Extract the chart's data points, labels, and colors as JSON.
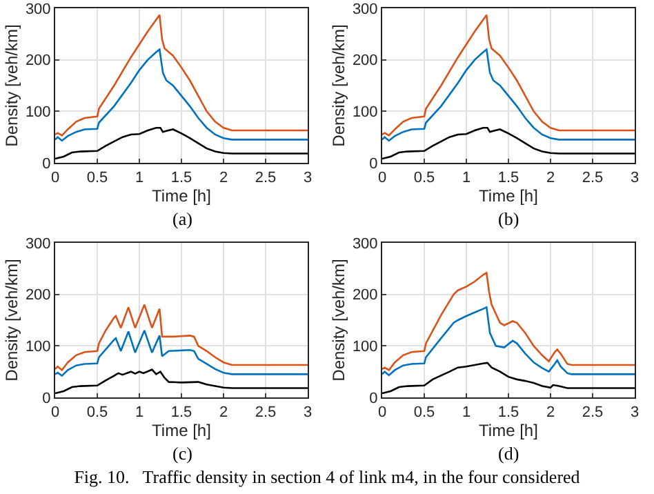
{
  "chart_data": [
    {
      "type": "line",
      "xlabel": "Time [h]",
      "ylabel": "Density [veh/km]",
      "xlim": [
        0,
        3
      ],
      "ylim": [
        0,
        300
      ],
      "xticks": [
        0,
        0.5,
        1,
        1.5,
        2,
        2.5,
        3
      ],
      "yticks": [
        0,
        100,
        200,
        300
      ],
      "grid": true,
      "annotations": [
        "(a)"
      ],
      "series": [
        {
          "color": "#d95319",
          "x": [
            0,
            0.03,
            0.08,
            0.15,
            0.25,
            0.35,
            0.5,
            0.52,
            0.7,
            0.9,
            1.0,
            1.1,
            1.2,
            1.24,
            1.27,
            1.3,
            1.4,
            1.5,
            1.6,
            1.7,
            1.8,
            1.9,
            2.0,
            2.1,
            3
          ],
          "values": [
            55,
            58,
            53,
            65,
            80,
            87,
            90,
            105,
            150,
            205,
            230,
            255,
            278,
            287,
            240,
            222,
            208,
            185,
            160,
            130,
            100,
            80,
            68,
            63,
            63
          ]
        },
        {
          "color": "#0072bd",
          "x": [
            0,
            0.03,
            0.08,
            0.15,
            0.25,
            0.35,
            0.5,
            0.52,
            0.7,
            0.9,
            1.0,
            1.1,
            1.2,
            1.24,
            1.28,
            1.32,
            1.4,
            1.5,
            1.6,
            1.7,
            1.8,
            1.9,
            2.0,
            2.1,
            3
          ],
          "values": [
            45,
            50,
            43,
            52,
            60,
            65,
            66,
            78,
            110,
            155,
            180,
            200,
            215,
            220,
            175,
            160,
            150,
            130,
            110,
            87,
            68,
            55,
            48,
            45,
            45
          ]
        },
        {
          "color": "#000000",
          "x": [
            0,
            0.1,
            0.2,
            0.3,
            0.5,
            0.6,
            0.8,
            0.9,
            1.0,
            1.1,
            1.2,
            1.25,
            1.28,
            1.32,
            1.4,
            1.5,
            1.6,
            1.7,
            1.8,
            1.9,
            2.0,
            2.1,
            3
          ],
          "values": [
            8,
            12,
            20,
            22,
            23,
            33,
            50,
            55,
            56,
            63,
            68,
            68,
            60,
            62,
            65,
            57,
            48,
            38,
            28,
            22,
            19,
            18,
            18
          ]
        }
      ]
    },
    {
      "type": "line",
      "xlabel": "Time [h]",
      "ylabel": "Density [veh/km]",
      "xlim": [
        0,
        3
      ],
      "ylim": [
        0,
        300
      ],
      "xticks": [
        0,
        0.5,
        1,
        1.5,
        2,
        2.5,
        3
      ],
      "yticks": [
        0,
        100,
        200,
        300
      ],
      "grid": true,
      "annotations": [
        "(b)"
      ],
      "series": [
        {
          "color": "#d95319",
          "x": [
            0,
            0.03,
            0.08,
            0.15,
            0.25,
            0.35,
            0.5,
            0.52,
            0.7,
            0.9,
            1.0,
            1.1,
            1.2,
            1.24,
            1.27,
            1.3,
            1.4,
            1.5,
            1.6,
            1.7,
            1.8,
            1.9,
            2.0,
            2.1,
            3
          ],
          "values": [
            55,
            58,
            53,
            65,
            80,
            87,
            90,
            105,
            150,
            205,
            230,
            255,
            278,
            287,
            240,
            222,
            208,
            185,
            160,
            130,
            100,
            80,
            68,
            63,
            63
          ]
        },
        {
          "color": "#0072bd",
          "x": [
            0,
            0.03,
            0.08,
            0.15,
            0.25,
            0.35,
            0.5,
            0.52,
            0.7,
            0.9,
            1.0,
            1.1,
            1.2,
            1.24,
            1.28,
            1.32,
            1.4,
            1.5,
            1.6,
            1.7,
            1.8,
            1.9,
            2.0,
            2.1,
            3
          ],
          "values": [
            45,
            50,
            43,
            52,
            60,
            65,
            66,
            78,
            110,
            155,
            180,
            200,
            215,
            220,
            175,
            160,
            150,
            130,
            110,
            87,
            68,
            55,
            48,
            45,
            45
          ]
        },
        {
          "color": "#000000",
          "x": [
            0,
            0.1,
            0.2,
            0.3,
            0.5,
            0.6,
            0.8,
            0.9,
            1.0,
            1.1,
            1.2,
            1.25,
            1.28,
            1.32,
            1.4,
            1.5,
            1.6,
            1.7,
            1.8,
            1.9,
            2.0,
            2.1,
            3
          ],
          "values": [
            8,
            12,
            20,
            22,
            23,
            33,
            50,
            55,
            56,
            63,
            68,
            68,
            60,
            62,
            65,
            57,
            48,
            38,
            28,
            22,
            19,
            18,
            18
          ]
        }
      ]
    },
    {
      "type": "line",
      "xlabel": "Time [h]",
      "ylabel": "Density [veh/km]",
      "xlim": [
        0,
        3
      ],
      "ylim": [
        0,
        300
      ],
      "xticks": [
        0,
        0.5,
        1,
        1.5,
        2,
        2.5,
        3
      ],
      "yticks": [
        0,
        100,
        200,
        300
      ],
      "grid": true,
      "annotations": [
        "(c)"
      ],
      "series": [
        {
          "color": "#d95319",
          "x": [
            0,
            0.03,
            0.08,
            0.15,
            0.25,
            0.35,
            0.5,
            0.52,
            0.6,
            0.7,
            0.72,
            0.78,
            0.87,
            0.95,
            1.06,
            1.15,
            1.24,
            1.27,
            1.4,
            1.6,
            1.65,
            1.7,
            1.8,
            1.9,
            2.0,
            2.1,
            3
          ],
          "values": [
            55,
            60,
            53,
            68,
            82,
            88,
            90,
            105,
            130,
            155,
            158,
            135,
            175,
            135,
            180,
            135,
            172,
            118,
            118,
            120,
            118,
            100,
            90,
            78,
            68,
            63,
            63
          ]
        },
        {
          "color": "#0072bd",
          "x": [
            0,
            0.03,
            0.08,
            0.15,
            0.25,
            0.35,
            0.5,
            0.52,
            0.7,
            0.72,
            0.78,
            0.87,
            0.95,
            1.06,
            1.15,
            1.24,
            1.27,
            1.35,
            1.6,
            1.65,
            1.7,
            1.8,
            1.9,
            2.0,
            2.1,
            3
          ],
          "values": [
            45,
            48,
            42,
            53,
            62,
            65,
            66,
            78,
            112,
            115,
            90,
            128,
            87,
            130,
            87,
            120,
            80,
            90,
            92,
            90,
            75,
            65,
            55,
            48,
            45,
            45
          ]
        },
        {
          "color": "#000000",
          "x": [
            0,
            0.1,
            0.2,
            0.3,
            0.5,
            0.6,
            0.7,
            0.75,
            0.8,
            0.9,
            0.95,
            1.0,
            1.05,
            1.15,
            1.2,
            1.25,
            1.3,
            1.35,
            1.5,
            1.7,
            1.8,
            1.9,
            2.0,
            2.1,
            3
          ],
          "values": [
            8,
            12,
            20,
            22,
            23,
            33,
            42,
            47,
            44,
            50,
            46,
            50,
            47,
            54,
            45,
            50,
            38,
            30,
            29,
            30,
            25,
            22,
            19,
            18,
            18
          ]
        }
      ]
    },
    {
      "type": "line",
      "xlabel": "Time [h]",
      "ylabel": "Density [veh/km]",
      "xlim": [
        0,
        3
      ],
      "ylim": [
        0,
        300
      ],
      "xticks": [
        0,
        0.5,
        1,
        1.5,
        2,
        2.5,
        3
      ],
      "yticks": [
        0,
        100,
        200,
        300
      ],
      "grid": true,
      "annotations": [
        "(d)",
        "Fig. 10.   Traffic density in section 4 of link m4, in the four considered"
      ],
      "series": [
        {
          "color": "#d95319",
          "x": [
            0,
            0.03,
            0.08,
            0.15,
            0.25,
            0.35,
            0.5,
            0.52,
            0.7,
            0.85,
            0.9,
            1.0,
            1.1,
            1.2,
            1.24,
            1.27,
            1.3,
            1.4,
            1.45,
            1.55,
            1.6,
            1.7,
            1.8,
            1.9,
            1.98,
            2.05,
            2.08,
            2.12,
            2.2,
            2.25,
            3
          ],
          "values": [
            55,
            58,
            53,
            68,
            82,
            88,
            90,
            105,
            160,
            200,
            208,
            215,
            225,
            238,
            242,
            205,
            180,
            145,
            140,
            148,
            145,
            125,
            100,
            82,
            70,
            88,
            93,
            85,
            65,
            63,
            63
          ]
        },
        {
          "color": "#0072bd",
          "x": [
            0,
            0.03,
            0.08,
            0.15,
            0.25,
            0.35,
            0.5,
            0.52,
            0.7,
            0.85,
            0.9,
            1.0,
            1.1,
            1.2,
            1.24,
            1.28,
            1.35,
            1.45,
            1.55,
            1.6,
            1.7,
            1.8,
            1.9,
            1.98,
            2.05,
            2.08,
            2.12,
            2.2,
            2.25,
            3
          ],
          "values": [
            45,
            50,
            43,
            53,
            62,
            65,
            66,
            78,
            115,
            145,
            150,
            158,
            165,
            172,
            175,
            125,
            100,
            97,
            110,
            105,
            85,
            68,
            57,
            50,
            65,
            72,
            60,
            47,
            45,
            45
          ]
        },
        {
          "color": "#000000",
          "x": [
            0,
            0.1,
            0.2,
            0.3,
            0.5,
            0.6,
            0.8,
            0.9,
            1.0,
            1.1,
            1.2,
            1.25,
            1.3,
            1.4,
            1.45,
            1.5,
            1.6,
            1.7,
            1.8,
            1.9,
            2.0,
            2.03,
            2.1,
            2.2,
            3
          ],
          "values": [
            8,
            12,
            20,
            22,
            23,
            35,
            50,
            58,
            60,
            63,
            66,
            67,
            58,
            50,
            45,
            40,
            35,
            32,
            28,
            22,
            19,
            24,
            22,
            18,
            18
          ]
        }
      ]
    }
  ]
}
